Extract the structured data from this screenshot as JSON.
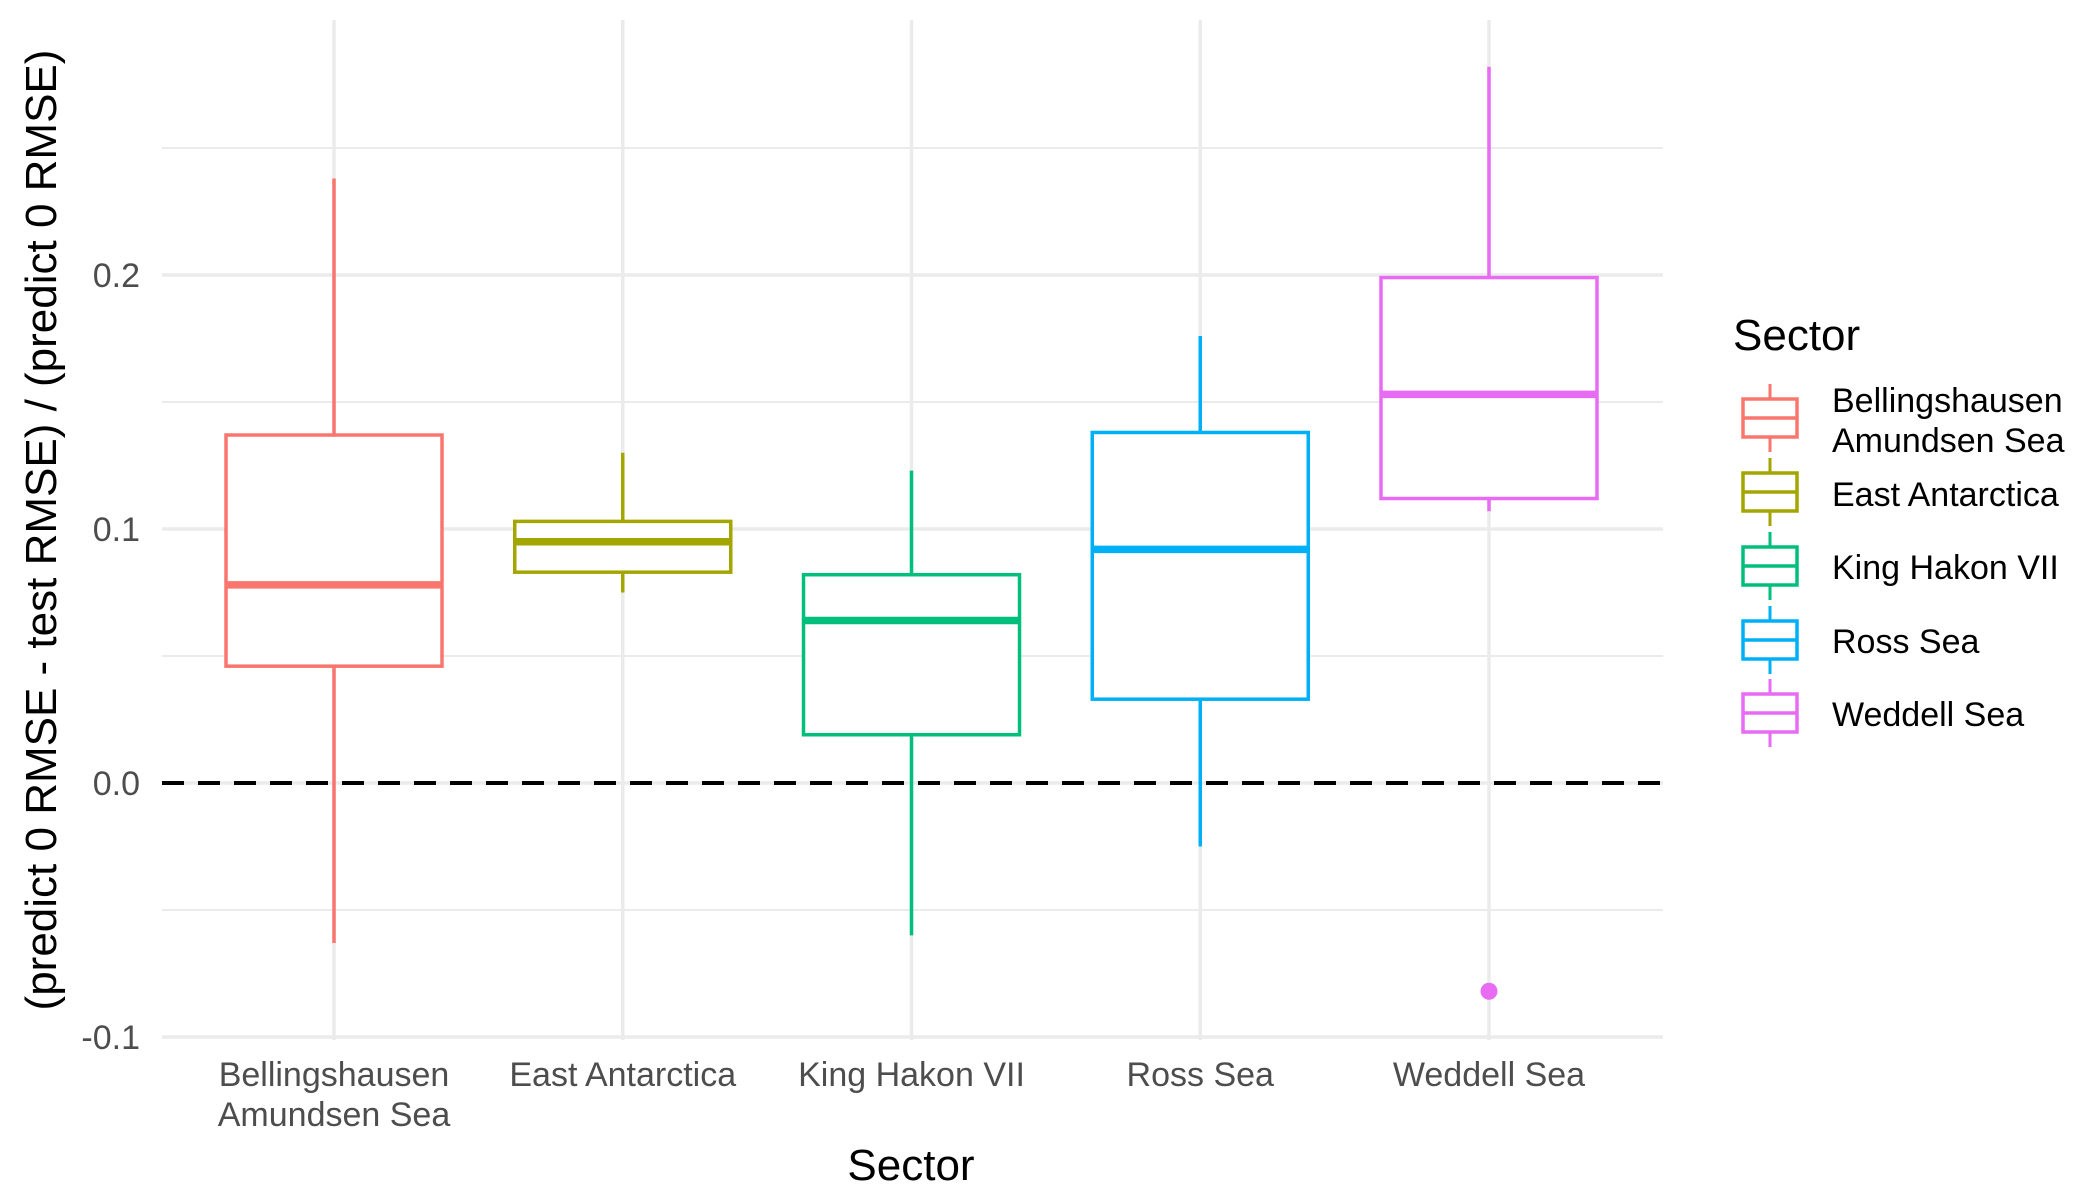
{
  "chart_data": {
    "type": "boxplot",
    "xlabel": "Sector",
    "ylabel": "(predict 0 RMSE - test RMSE) / (predict 0 RMSE)",
    "ylim": [
      -0.1,
      0.3
    ],
    "y_ticks": [
      {
        "value": -0.1,
        "label": "-0.1"
      },
      {
        "value": 0.0,
        "label": "0.0"
      },
      {
        "value": 0.1,
        "label": "0.1"
      },
      {
        "value": 0.2,
        "label": "0.2"
      }
    ],
    "y_minor_ticks": [
      -0.05,
      0.05,
      0.15,
      0.25
    ],
    "grid": true,
    "reference_line": {
      "y": 0.0,
      "style": "dashed",
      "color": "#000000"
    },
    "legend": {
      "title": "Sector",
      "position": "right"
    },
    "categories": [
      {
        "name": "Bellingshausen Amundsen Sea",
        "label_lines": [
          "Bellingshausen",
          "Amundsen Sea"
        ],
        "color": "#F8766D",
        "whisker_low": -0.063,
        "q1": 0.046,
        "median": 0.078,
        "q3": 0.137,
        "whisker_high": 0.238,
        "outliers": []
      },
      {
        "name": "East Antarctica",
        "label_lines": [
          "East Antarctica"
        ],
        "color": "#A3A500",
        "whisker_low": 0.075,
        "q1": 0.083,
        "median": 0.095,
        "q3": 0.103,
        "whisker_high": 0.13,
        "outliers": []
      },
      {
        "name": "King Hakon VII",
        "label_lines": [
          "King Hakon VII"
        ],
        "color": "#00BF7D",
        "whisker_low": -0.06,
        "q1": 0.019,
        "median": 0.064,
        "q3": 0.082,
        "whisker_high": 0.123,
        "outliers": []
      },
      {
        "name": "Ross Sea",
        "label_lines": [
          "Ross Sea"
        ],
        "color": "#00B0F6",
        "whisker_low": -0.025,
        "q1": 0.033,
        "median": 0.092,
        "q3": 0.138,
        "whisker_high": 0.176,
        "outliers": []
      },
      {
        "name": "Weddell Sea",
        "label_lines": [
          "Weddell Sea"
        ],
        "color": "#E76BF3",
        "whisker_low": 0.107,
        "q1": 0.112,
        "median": 0.153,
        "q3": 0.199,
        "whisker_high": 0.282,
        "outliers": [
          -0.082
        ]
      }
    ]
  }
}
